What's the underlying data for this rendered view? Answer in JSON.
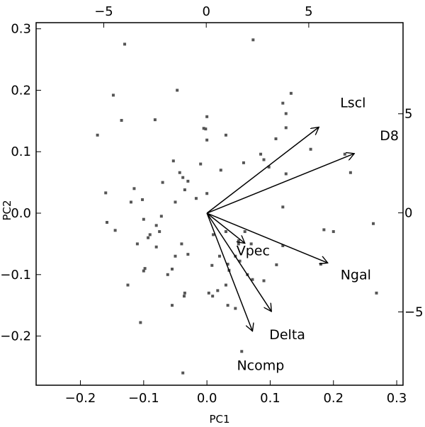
{
  "chart_data": {
    "type": "scatter",
    "subtype": "pca-biplot",
    "title": "",
    "xlabel": "PC1",
    "ylabel": "PC2",
    "xlim": [
      -0.27,
      0.31
    ],
    "ylim": [
      -0.28,
      0.31
    ],
    "xticks": [
      -0.2,
      -0.1,
      0.0,
      0.1,
      0.2,
      0.3
    ],
    "xtick_labels": [
      "−0.2",
      "−0.1",
      "0.0",
      "0.1",
      "0.2",
      "0.3"
    ],
    "yticks": [
      -0.2,
      -0.1,
      0.0,
      0.1,
      0.2,
      0.3
    ],
    "ytick_labels": [
      "−0.2",
      "−0.1",
      "0.0",
      "0.1",
      "0.2",
      "0.3"
    ],
    "secondary_x": {
      "lim": [
        -8.3,
        9.6
      ],
      "ticks": [
        -5,
        0,
        5
      ],
      "tick_labels": [
        "−5",
        "0",
        "5"
      ]
    },
    "secondary_y": {
      "lim": [
        -8.7,
        9.6
      ],
      "ticks": [
        -5,
        0,
        5
      ],
      "tick_labels": [
        "−5",
        "0",
        "5"
      ]
    },
    "grid": false,
    "point_color": "#555555",
    "arrow_color": "#000000",
    "points": [
      [
        -0.13,
        0.275
      ],
      [
        0.073,
        0.282
      ],
      [
        -0.148,
        0.192
      ],
      [
        -0.047,
        0.2
      ],
      [
        -0.135,
        0.151
      ],
      [
        -0.082,
        0.152
      ],
      [
        0.0,
        0.157
      ],
      [
        -0.002,
        0.137
      ],
      [
        0.133,
        0.195
      ],
      [
        0.12,
        0.179
      ],
      [
        0.125,
        0.162
      ],
      [
        0.125,
        0.139
      ],
      [
        -0.173,
        0.127
      ],
      [
        -0.005,
        0.138
      ],
      [
        0.03,
        0.127
      ],
      [
        0.109,
        0.121
      ],
      [
        0.085,
        0.096
      ],
      [
        0.164,
        0.104
      ],
      [
        0.218,
        0.096
      ],
      [
        -0.053,
        0.085
      ],
      [
        0.0,
        0.119
      ],
      [
        0.09,
        0.087
      ],
      [
        0.098,
        0.075
      ],
      [
        -0.043,
        0.066
      ],
      [
        -0.01,
        0.08
      ],
      [
        0.022,
        0.07
      ],
      [
        0.058,
        0.082
      ],
      [
        0.125,
        0.064
      ],
      [
        -0.038,
        0.058
      ],
      [
        -0.07,
        0.05
      ],
      [
        -0.03,
        0.052
      ],
      [
        -0.115,
        0.04
      ],
      [
        -0.16,
        0.033
      ],
      [
        0.227,
        0.066
      ],
      [
        -0.035,
        0.038
      ],
      [
        -0.12,
        0.018
      ],
      [
        -0.102,
        0.022
      ],
      [
        0.0,
        0.032
      ],
      [
        -0.017,
        0.024
      ],
      [
        -0.05,
        0.018
      ],
      [
        0.12,
        0.01
      ],
      [
        0.263,
        -0.017
      ],
      [
        0.2,
        -0.03
      ],
      [
        0.185,
        -0.027
      ],
      [
        -0.158,
        -0.015
      ],
      [
        -0.1,
        -0.01
      ],
      [
        -0.072,
        -0.005
      ],
      [
        -0.145,
        -0.028
      ],
      [
        -0.08,
        -0.02
      ],
      [
        0.03,
        -0.03
      ],
      [
        -0.075,
        -0.03
      ],
      [
        -0.09,
        -0.035
      ],
      [
        -0.093,
        -0.04
      ],
      [
        0.05,
        -0.045
      ],
      [
        0.01,
        -0.035
      ],
      [
        0.07,
        -0.05
      ],
      [
        0.06,
        -0.03
      ],
      [
        -0.04,
        -0.05
      ],
      [
        0.12,
        -0.053
      ],
      [
        -0.11,
        -0.05
      ],
      [
        -0.08,
        -0.055
      ],
      [
        -0.05,
        -0.07
      ],
      [
        -0.03,
        -0.067
      ],
      [
        0.02,
        -0.07
      ],
      [
        0.05,
        -0.05
      ],
      [
        0.045,
        -0.07
      ],
      [
        0.052,
        -0.078
      ],
      [
        0.008,
        -0.085
      ],
      [
        0.033,
        -0.083
      ],
      [
        0.11,
        -0.084
      ],
      [
        0.035,
        -0.093
      ],
      [
        -0.098,
        -0.09
      ],
      [
        -0.1,
        -0.094
      ],
      [
        -0.055,
        -0.091
      ],
      [
        0.064,
        -0.1
      ],
      [
        0.18,
        -0.083
      ],
      [
        -0.062,
        -0.1
      ],
      [
        0.072,
        -0.108
      ],
      [
        0.09,
        -0.11
      ],
      [
        -0.125,
        -0.117
      ],
      [
        0.03,
        -0.117
      ],
      [
        0.017,
        -0.126
      ],
      [
        0.009,
        -0.135
      ],
      [
        0.003,
        -0.13
      ],
      [
        -0.035,
        -0.13
      ],
      [
        0.268,
        -0.13
      ],
      [
        -0.036,
        -0.135
      ],
      [
        -0.055,
        -0.15
      ],
      [
        0.033,
        -0.15
      ],
      [
        0.045,
        -0.155
      ],
      [
        -0.105,
        -0.178
      ],
      [
        0.055,
        -0.225
      ],
      [
        -0.038,
        -0.26
      ]
    ],
    "loadings": [
      {
        "name": "Lscl",
        "x": 0.177,
        "y": 0.14
      },
      {
        "name": "D8",
        "x": 0.233,
        "y": 0.097
      },
      {
        "name": "Ngal",
        "x": 0.191,
        "y": -0.081
      },
      {
        "name": "Vpec",
        "x": 0.06,
        "y": -0.049
      },
      {
        "name": "Delta",
        "x": 0.102,
        "y": -0.16
      },
      {
        "name": "Ncomp",
        "x": 0.072,
        "y": -0.192
      }
    ]
  }
}
